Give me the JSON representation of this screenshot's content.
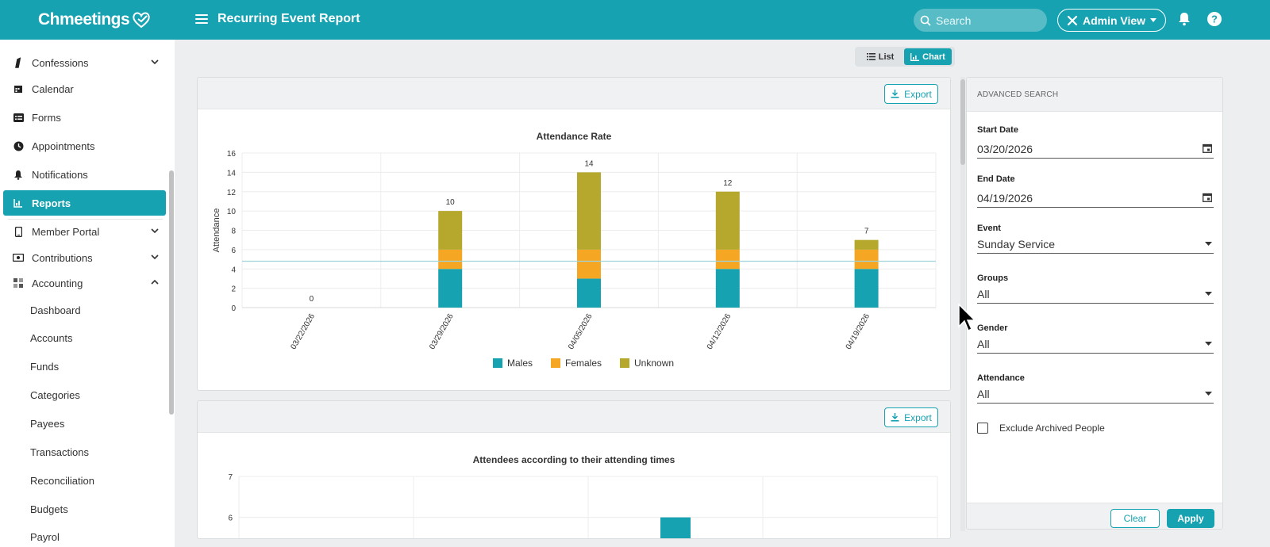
{
  "app": {
    "logo_text": "Chmeetings",
    "page_title": "Recurring Event Report"
  },
  "header": {
    "search_placeholder": "Search",
    "admin_view_label": "Admin View"
  },
  "sidebar": {
    "items": [
      {
        "label": "Confessions",
        "icon": "confession-icon",
        "expandable": true
      },
      {
        "label": "Calendar",
        "icon": "calendar-icon"
      },
      {
        "label": "Forms",
        "icon": "forms-icon"
      },
      {
        "label": "Appointments",
        "icon": "clock-icon"
      },
      {
        "label": "Notifications",
        "icon": "bell-icon"
      },
      {
        "label": "Reports",
        "icon": "chart-icon",
        "active": true
      },
      {
        "label": "Member Portal",
        "icon": "phone-icon",
        "expandable": true
      },
      {
        "label": "Contributions",
        "icon": "money-icon",
        "expandable": true
      },
      {
        "label": "Accounting",
        "icon": "grid-icon",
        "expanded": true
      }
    ],
    "accounting_sub": [
      "Dashboard",
      "Accounts",
      "Funds",
      "Categories",
      "Payees",
      "Transactions",
      "Reconciliation",
      "Budgets",
      "Payrol"
    ]
  },
  "view_toggle": {
    "list_label": "List",
    "chart_label": "Chart",
    "selected": "Chart"
  },
  "cards": {
    "export_label": "Export"
  },
  "chart_data": [
    {
      "type": "bar",
      "stacked": true,
      "title": "Attendance Rate",
      "ylabel": "Attendance",
      "xlabel": "",
      "ylim": [
        0,
        16
      ],
      "yticks": [
        0,
        2,
        4,
        6,
        8,
        10,
        12,
        14,
        16
      ],
      "categories": [
        "03/22/2026",
        "03/29/2026",
        "04/05/2026",
        "04/12/2026",
        "04/19/2026"
      ],
      "series": [
        {
          "name": "Males",
          "color": "#17a2b1",
          "values": [
            0,
            4,
            3,
            4,
            4
          ]
        },
        {
          "name": "Females",
          "color": "#f5a623",
          "values": [
            0,
            2,
            3,
            2,
            2
          ]
        },
        {
          "name": "Unknown",
          "color": "#b5a82c",
          "values": [
            0,
            4,
            8,
            6,
            1
          ]
        }
      ],
      "totals": [
        0,
        10,
        14,
        12,
        7
      ],
      "average_line": 4.8,
      "legend": "bottom",
      "grid": true
    },
    {
      "type": "bar",
      "title": "Attendees according to their attending times",
      "yticks_visible": [
        6,
        7
      ],
      "ylim_visible": [
        5.45,
        7
      ],
      "visible_bar": {
        "column": 2,
        "value": 6,
        "color": "#17a2b1"
      },
      "columns": 4,
      "grid": true
    }
  ],
  "advanced_search": {
    "title": "ADVANCED SEARCH",
    "start_date": {
      "label": "Start Date",
      "value": "03/20/2026"
    },
    "end_date": {
      "label": "End Date",
      "value": "04/19/2026"
    },
    "event": {
      "label": "Event",
      "value": "Sunday Service"
    },
    "groups": {
      "label": "Groups",
      "value": "All"
    },
    "gender": {
      "label": "Gender",
      "value": "All"
    },
    "attendance": {
      "label": "Attendance",
      "value": "All"
    },
    "exclude_archived_label": "Exclude Archived People",
    "clear_label": "Clear",
    "apply_label": "Apply"
  },
  "colors": {
    "accent": "#17a2b1",
    "males": "#17a2b1",
    "females": "#f5a623",
    "unknown": "#b5a82c"
  }
}
